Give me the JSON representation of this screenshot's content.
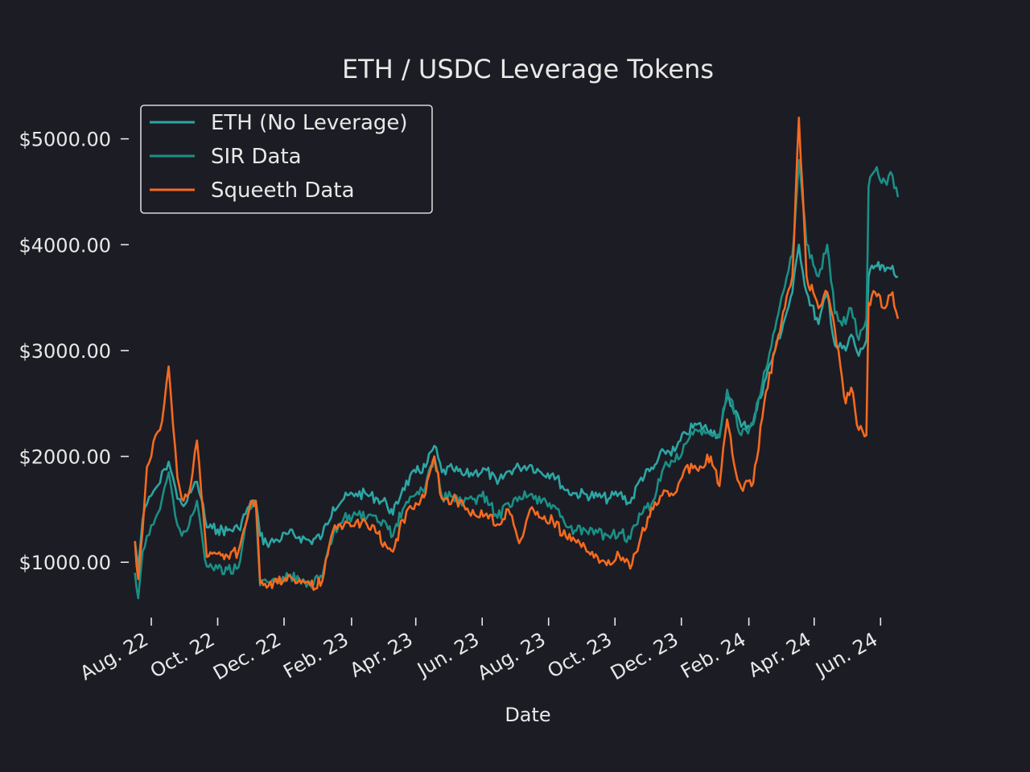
{
  "chart_data": {
    "type": "line",
    "title": "ETH / USDC Leverage Tokens",
    "xlabel": "Date",
    "ylabel": "",
    "grid": false,
    "legend_position": "top-left",
    "ylim": [
      500,
      5400
    ],
    "xlim": [
      "2022-07-15",
      "2024-06-20"
    ],
    "y_ticks": [
      {
        "value": 1000,
        "label": "$1000.00"
      },
      {
        "value": 2000,
        "label": "$2000.00"
      },
      {
        "value": 3000,
        "label": "$3000.00"
      },
      {
        "value": 4000,
        "label": "$4000.00"
      },
      {
        "value": 5000,
        "label": "$5000.00"
      }
    ],
    "x_ticks": [
      {
        "value": "2022-08-01",
        "label": "Aug. 22"
      },
      {
        "value": "2022-10-01",
        "label": "Oct. 22"
      },
      {
        "value": "2022-12-01",
        "label": "Dec. 22"
      },
      {
        "value": "2023-02-01",
        "label": "Feb. 23"
      },
      {
        "value": "2023-04-01",
        "label": "Apr. 23"
      },
      {
        "value": "2023-06-01",
        "label": "Jun. 23"
      },
      {
        "value": "2023-08-01",
        "label": "Aug. 23"
      },
      {
        "value": "2023-10-01",
        "label": "Oct. 23"
      },
      {
        "value": "2023-12-01",
        "label": "Dec. 23"
      },
      {
        "value": "2024-02-01",
        "label": "Feb. 24"
      },
      {
        "value": "2024-04-01",
        "label": "Apr. 24"
      },
      {
        "value": "2024-06-01",
        "label": "Jun. 24"
      }
    ],
    "series": [
      {
        "name": "ETH (No Leverage)",
        "color": "#2ca6a4",
        "x": [
          "2022-07-17",
          "2022-07-20",
          "2022-07-24",
          "2022-07-28",
          "2022-08-01",
          "2022-08-05",
          "2022-08-09",
          "2022-08-13",
          "2022-08-17",
          "2022-08-21",
          "2022-08-25",
          "2022-08-29",
          "2022-09-03",
          "2022-09-08",
          "2022-09-12",
          "2022-09-16",
          "2022-09-21",
          "2022-09-26",
          "2022-10-01",
          "2022-10-10",
          "2022-10-20",
          "2022-10-30",
          "2022-11-05",
          "2022-11-09",
          "2022-11-15",
          "2022-11-25",
          "2022-12-05",
          "2022-12-15",
          "2022-12-25",
          "2023-01-05",
          "2023-01-15",
          "2023-01-25",
          "2023-02-05",
          "2023-02-15",
          "2023-02-25",
          "2023-03-05",
          "2023-03-11",
          "2023-03-20",
          "2023-04-01",
          "2023-04-10",
          "2023-04-18",
          "2023-04-25",
          "2023-05-05",
          "2023-05-15",
          "2023-05-25",
          "2023-06-05",
          "2023-06-15",
          "2023-06-25",
          "2023-07-05",
          "2023-07-15",
          "2023-07-25",
          "2023-08-05",
          "2023-08-17",
          "2023-08-25",
          "2023-09-05",
          "2023-09-15",
          "2023-09-25",
          "2023-10-05",
          "2023-10-15",
          "2023-10-25",
          "2023-11-05",
          "2023-11-15",
          "2023-11-25",
          "2023-12-05",
          "2023-12-15",
          "2023-12-28",
          "2024-01-05",
          "2024-01-12",
          "2024-01-20",
          "2024-01-25",
          "2024-02-05",
          "2024-02-15",
          "2024-02-25",
          "2024-03-05",
          "2024-03-12",
          "2024-03-18",
          "2024-03-25",
          "2024-04-05",
          "2024-04-13",
          "2024-04-20",
          "2024-04-30",
          "2024-05-05",
          "2024-05-12",
          "2024-05-19",
          "2024-05-21",
          "2024-05-27",
          "2024-06-05",
          "2024-06-12",
          "2024-06-17"
        ],
        "values": [
          1200,
          950,
          1400,
          1550,
          1630,
          1700,
          1750,
          1880,
          1950,
          1800,
          1600,
          1550,
          1580,
          1700,
          1760,
          1600,
          1330,
          1320,
          1310,
          1300,
          1320,
          1530,
          1580,
          1250,
          1180,
          1210,
          1270,
          1240,
          1200,
          1250,
          1520,
          1600,
          1650,
          1640,
          1600,
          1560,
          1450,
          1700,
          1850,
          1900,
          2100,
          1850,
          1880,
          1820,
          1850,
          1870,
          1740,
          1860,
          1900,
          1920,
          1850,
          1840,
          1680,
          1650,
          1640,
          1620,
          1600,
          1650,
          1560,
          1800,
          1880,
          2050,
          2050,
          2220,
          2300,
          2250,
          2200,
          2550,
          2430,
          2280,
          2320,
          2700,
          3000,
          3300,
          3550,
          4000,
          3550,
          3250,
          3550,
          3050,
          3000,
          3150,
          2950,
          3100,
          3700,
          3800,
          3750,
          3800,
          3700
        ]
      },
      {
        "name": "SIR Data",
        "color": "#1a8f86",
        "x": [
          "2022-07-17",
          "2022-07-20",
          "2022-07-24",
          "2022-07-28",
          "2022-08-01",
          "2022-08-05",
          "2022-08-09",
          "2022-08-13",
          "2022-08-17",
          "2022-08-21",
          "2022-08-25",
          "2022-08-29",
          "2022-09-03",
          "2022-09-08",
          "2022-09-12",
          "2022-09-16",
          "2022-09-21",
          "2022-09-26",
          "2022-10-01",
          "2022-10-10",
          "2022-10-20",
          "2022-10-30",
          "2022-11-05",
          "2022-11-09",
          "2022-11-15",
          "2022-11-25",
          "2022-12-05",
          "2022-12-15",
          "2022-12-25",
          "2023-01-05",
          "2023-01-15",
          "2023-01-25",
          "2023-02-05",
          "2023-02-15",
          "2023-02-25",
          "2023-03-05",
          "2023-03-11",
          "2023-03-20",
          "2023-04-01",
          "2023-04-10",
          "2023-04-18",
          "2023-04-25",
          "2023-05-05",
          "2023-05-15",
          "2023-05-25",
          "2023-06-05",
          "2023-06-15",
          "2023-06-25",
          "2023-07-05",
          "2023-07-15",
          "2023-07-25",
          "2023-08-05",
          "2023-08-17",
          "2023-08-25",
          "2023-09-05",
          "2023-09-15",
          "2023-09-25",
          "2023-10-05",
          "2023-10-15",
          "2023-10-25",
          "2023-11-05",
          "2023-11-15",
          "2023-11-25",
          "2023-12-05",
          "2023-12-15",
          "2023-12-28",
          "2024-01-05",
          "2024-01-12",
          "2024-01-20",
          "2024-01-25",
          "2024-02-05",
          "2024-02-15",
          "2024-02-25",
          "2024-03-05",
          "2024-03-12",
          "2024-03-18",
          "2024-03-25",
          "2024-04-05",
          "2024-04-13",
          "2024-04-20",
          "2024-04-30",
          "2024-05-05",
          "2024-05-12",
          "2024-05-19",
          "2024-05-21",
          "2024-05-27",
          "2024-06-05",
          "2024-06-12",
          "2024-06-17"
        ],
        "values": [
          900,
          660,
          1100,
          1250,
          1350,
          1420,
          1500,
          1700,
          1850,
          1600,
          1350,
          1250,
          1300,
          1450,
          1580,
          1300,
          960,
          950,
          940,
          930,
          950,
          1500,
          1560,
          780,
          820,
          840,
          870,
          840,
          800,
          860,
          1250,
          1420,
          1450,
          1420,
          1380,
          1360,
          1250,
          1500,
          1640,
          1720,
          2000,
          1620,
          1620,
          1560,
          1600,
          1620,
          1420,
          1560,
          1620,
          1640,
          1560,
          1540,
          1340,
          1300,
          1290,
          1280,
          1250,
          1280,
          1220,
          1450,
          1580,
          1900,
          1950,
          2120,
          2250,
          2200,
          2180,
          2630,
          2400,
          2200,
          2300,
          2800,
          3200,
          3600,
          3900,
          4800,
          4000,
          3700,
          4000,
          3350,
          3250,
          3400,
          3100,
          3300,
          4550,
          4700,
          4600,
          4650,
          4450
        ]
      },
      {
        "name": "Squeeth Data",
        "color": "#f46a1f",
        "x": [
          "2022-07-17",
          "2022-07-20",
          "2022-07-24",
          "2022-07-28",
          "2022-08-01",
          "2022-08-05",
          "2022-08-09",
          "2022-08-13",
          "2022-08-17",
          "2022-08-21",
          "2022-08-25",
          "2022-08-29",
          "2022-09-03",
          "2022-09-08",
          "2022-09-12",
          "2022-09-16",
          "2022-09-21",
          "2022-09-26",
          "2022-10-01",
          "2022-10-10",
          "2022-10-20",
          "2022-10-30",
          "2022-11-05",
          "2022-11-09",
          "2022-11-15",
          "2022-11-25",
          "2022-12-05",
          "2022-12-15",
          "2022-12-25",
          "2023-01-05",
          "2023-01-15",
          "2023-01-25",
          "2023-02-05",
          "2023-02-15",
          "2023-02-25",
          "2023-03-05",
          "2023-03-11",
          "2023-03-20",
          "2023-04-01",
          "2023-04-10",
          "2023-04-18",
          "2023-04-25",
          "2023-05-05",
          "2023-05-15",
          "2023-05-25",
          "2023-06-05",
          "2023-06-15",
          "2023-06-25",
          "2023-07-05",
          "2023-07-15",
          "2023-07-25",
          "2023-08-05",
          "2023-08-17",
          "2023-08-25",
          "2023-09-05",
          "2023-09-15",
          "2023-09-25",
          "2023-10-05",
          "2023-10-15",
          "2023-10-25",
          "2023-11-05",
          "2023-11-15",
          "2023-11-25",
          "2023-12-05",
          "2023-12-15",
          "2023-12-28",
          "2024-01-05",
          "2024-01-12",
          "2024-01-20",
          "2024-01-25",
          "2024-02-05",
          "2024-02-15",
          "2024-02-25",
          "2024-03-05",
          "2024-03-12",
          "2024-03-18",
          "2024-03-25",
          "2024-04-05",
          "2024-04-13",
          "2024-04-20",
          "2024-04-30",
          "2024-05-05",
          "2024-05-12",
          "2024-05-19",
          "2024-05-21",
          "2024-05-27",
          "2024-06-05",
          "2024-06-12",
          "2024-06-17"
        ],
        "values": [
          1200,
          840,
          1300,
          1900,
          2000,
          2200,
          2250,
          2500,
          2850,
          2300,
          1800,
          1600,
          1620,
          1850,
          2150,
          1650,
          1050,
          1080,
          1080,
          1060,
          1100,
          1500,
          1580,
          800,
          760,
          800,
          880,
          840,
          780,
          820,
          1300,
          1350,
          1380,
          1360,
          1270,
          1150,
          1100,
          1400,
          1560,
          1650,
          2000,
          1600,
          1600,
          1540,
          1450,
          1460,
          1360,
          1500,
          1180,
          1500,
          1420,
          1390,
          1240,
          1210,
          1100,
          1050,
          1020,
          1060,
          940,
          1250,
          1500,
          1680,
          1650,
          1900,
          1880,
          2000,
          1720,
          2350,
          1850,
          1700,
          1750,
          2500,
          3000,
          3400,
          3700,
          5200,
          3700,
          3400,
          3550,
          3200,
          2500,
          2650,
          2250,
          2200,
          3450,
          3550,
          3400,
          3550,
          3300
        ]
      }
    ]
  }
}
